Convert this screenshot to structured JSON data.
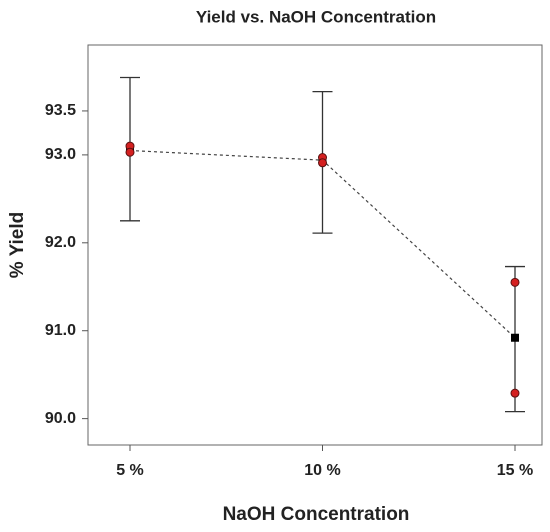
{
  "chart_data": {
    "type": "interval",
    "title": "Yield vs. NaOH Concentration",
    "x_label": "NaOH Concentration",
    "y_label": "% Yield",
    "categories": [
      "5 %",
      "10 %",
      "15 %"
    ],
    "means": [
      93.05,
      92.94,
      90.92
    ],
    "upper": [
      93.88,
      93.72,
      91.73
    ],
    "lower": [
      92.25,
      92.11,
      90.08
    ],
    "replicates": [
      [
        93.1,
        93.03
      ],
      [
        92.97,
        92.91
      ],
      [
        91.55,
        90.29
      ]
    ],
    "point_color": "#d42020",
    "mean_color": "#000000",
    "ylim": [
      89.7,
      94.25
    ],
    "yticks": [
      {
        "value": 90,
        "label": "90.0"
      },
      {
        "value": 91,
        "label": "91.0"
      },
      {
        "value": 92,
        "label": "92.0"
      },
      {
        "value": 93,
        "label": "93.0"
      },
      93.5
    ]
  }
}
